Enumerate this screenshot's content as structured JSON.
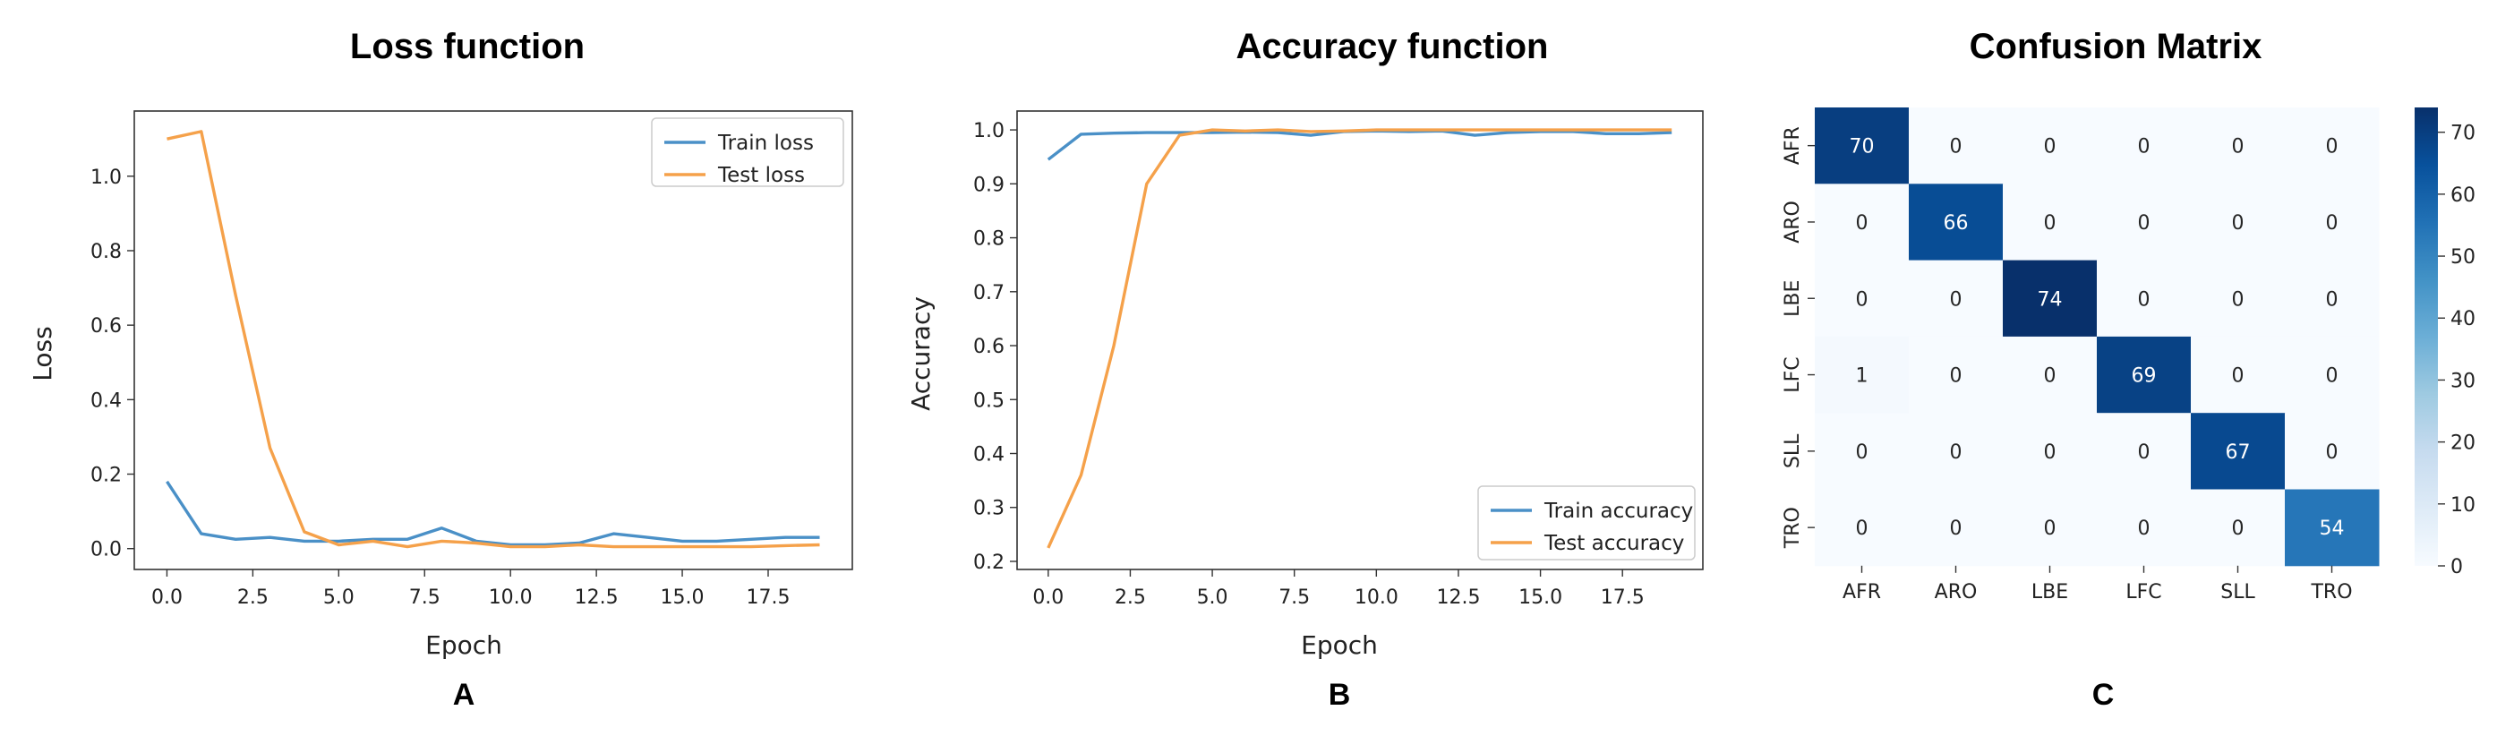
{
  "chart_data": [
    {
      "id": "loss",
      "type": "line",
      "title": "Loss function",
      "panel_label": "A",
      "xlabel": "Epoch",
      "ylabel": "Loss",
      "xlim": [
        -0.95,
        19.95
      ],
      "ylim": [
        -0.056,
        1.175
      ],
      "xticks": [
        0.0,
        2.5,
        5.0,
        7.5,
        10.0,
        12.5,
        15.0,
        17.5
      ],
      "xticklabels": [
        "0.0",
        "2.5",
        "5.0",
        "7.5",
        "10.0",
        "12.5",
        "15.0",
        "17.5"
      ],
      "yticks": [
        0.0,
        0.2,
        0.4,
        0.6,
        0.8,
        1.0
      ],
      "yticklabels": [
        "0.0",
        "0.2",
        "0.4",
        "0.6",
        "0.8",
        "1.0"
      ],
      "legend_position": "top-right",
      "x": [
        0,
        1,
        2,
        3,
        4,
        5,
        6,
        7,
        8,
        9,
        10,
        11,
        12,
        13,
        14,
        15,
        16,
        17,
        18,
        19
      ],
      "series": [
        {
          "name": "Train loss",
          "color": "#4a90c7",
          "values": [
            0.18,
            0.04,
            0.025,
            0.03,
            0.02,
            0.02,
            0.025,
            0.025,
            0.055,
            0.02,
            0.01,
            0.01,
            0.015,
            0.04,
            0.03,
            0.02,
            0.02,
            0.025,
            0.03,
            0.03
          ]
        },
        {
          "name": "Test loss",
          "color": "#f5a14a",
          "values": [
            1.1,
            1.12,
            0.68,
            0.27,
            0.045,
            0.01,
            0.02,
            0.005,
            0.02,
            0.015,
            0.005,
            0.005,
            0.01,
            0.005,
            0.005,
            0.005,
            0.005,
            0.005,
            0.008,
            0.01
          ]
        }
      ]
    },
    {
      "id": "accuracy",
      "type": "line",
      "title": "Accuracy function",
      "panel_label": "B",
      "xlabel": "Epoch",
      "ylabel": "Accuracy",
      "xlim": [
        -0.95,
        19.95
      ],
      "ylim": [
        0.185,
        1.035
      ],
      "xticks": [
        0.0,
        2.5,
        5.0,
        7.5,
        10.0,
        12.5,
        15.0,
        17.5
      ],
      "xticklabels": [
        "0.0",
        "2.5",
        "5.0",
        "7.5",
        "10.0",
        "12.5",
        "15.0",
        "17.5"
      ],
      "yticks": [
        0.2,
        0.3,
        0.4,
        0.5,
        0.6,
        0.7,
        0.8,
        0.9,
        1.0
      ],
      "yticklabels": [
        "0.2",
        "0.3",
        "0.4",
        "0.5",
        "0.6",
        "0.7",
        "0.8",
        "0.9",
        "1.0"
      ],
      "legend_position": "bottom-right",
      "x": [
        0,
        1,
        2,
        3,
        4,
        5,
        6,
        7,
        8,
        9,
        10,
        11,
        12,
        13,
        14,
        15,
        16,
        17,
        18,
        19
      ],
      "series": [
        {
          "name": "Train accuracy",
          "color": "#4a90c7",
          "values": [
            0.945,
            0.992,
            0.994,
            0.995,
            0.995,
            0.995,
            0.996,
            0.995,
            0.99,
            0.997,
            0.998,
            0.997,
            0.998,
            0.99,
            0.995,
            0.997,
            0.997,
            0.993,
            0.993,
            0.995
          ]
        },
        {
          "name": "Test accuracy",
          "color": "#f5a14a",
          "values": [
            0.225,
            0.36,
            0.6,
            0.9,
            0.99,
            1.0,
            0.998,
            1.0,
            0.997,
            0.998,
            1.0,
            1.0,
            1.0,
            1.0,
            1.0,
            1.0,
            1.0,
            1.0,
            1.0,
            1.0
          ]
        }
      ]
    },
    {
      "id": "confusion",
      "type": "heatmap",
      "title": "Confusion Matrix",
      "panel_label": "C",
      "row_labels": [
        "AFR",
        "ARO",
        "LBE",
        "LFC",
        "SLL",
        "TRO"
      ],
      "col_labels": [
        "AFR",
        "ARO",
        "LBE",
        "LFC",
        "SLL",
        "TRO"
      ],
      "values": [
        [
          70,
          0,
          0,
          0,
          0,
          0
        ],
        [
          0,
          66,
          0,
          0,
          0,
          0
        ],
        [
          0,
          0,
          74,
          0,
          0,
          0
        ],
        [
          1,
          0,
          0,
          69,
          0,
          0
        ],
        [
          0,
          0,
          0,
          0,
          67,
          0
        ],
        [
          0,
          0,
          0,
          0,
          0,
          54
        ]
      ],
      "colormap": "Blues",
      "colorbar_range": [
        0,
        74
      ],
      "colorbar_ticks": [
        0,
        10,
        20,
        30,
        40,
        50,
        60,
        70
      ],
      "colorbar_ticklabels": [
        "0",
        "10",
        "20",
        "30",
        "40",
        "50",
        "60",
        "70"
      ]
    }
  ]
}
